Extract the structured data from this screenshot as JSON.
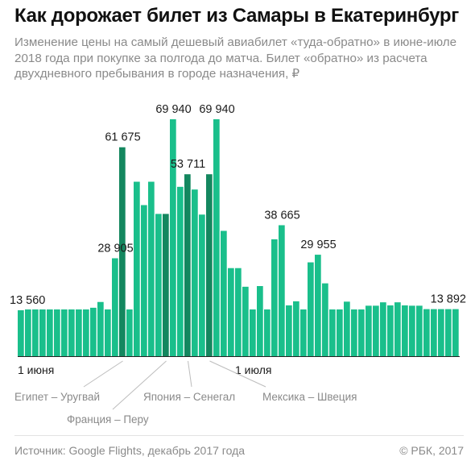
{
  "title": "Как дорожает билет из Самары в Екатеринбург",
  "subtitle": "Изменение цены на самый дешевый авиабилет «туда-обратно» в июне-июле 2018 года при покупке за полгода до матча. Билет «обратно» из расчета двухдневного пребывания в городе назначения, ₽",
  "footer": {
    "source": "Источник: Google Flights, декабрь 2017 года",
    "copyright": "© РБК, 2017"
  },
  "colors": {
    "bar": "#1abf8b",
    "match": "#14875f",
    "baseline": "#222222",
    "leader": "#bdbdbd",
    "match_label": "#8a8a8a"
  },
  "chart_data": {
    "type": "bar",
    "ylim": [
      0,
      75000
    ],
    "x_start": "1 июня",
    "x": [
      "1 июня",
      "2 июня",
      "3 июня",
      "4 июня",
      "5 июня",
      "6 июня",
      "7 июня",
      "8 июня",
      "9 июня",
      "10 июня",
      "11 июня",
      "12 июня",
      "13 июня",
      "14 июня",
      "15 июня",
      "16 июня",
      "17 июня",
      "18 июня",
      "19 июня",
      "20 июня",
      "21 июня",
      "22 июня",
      "23 июня",
      "24 июня",
      "25 июня",
      "26 июня",
      "27 июня",
      "28 июня",
      "29 июня",
      "30 июня",
      "1 июля",
      "2 июля",
      "3 июля",
      "4 июля",
      "5 июля",
      "6 июля",
      "7 июля",
      "8 июля",
      "9 июля",
      "10 июля",
      "11 июля",
      "12 июля",
      "13 июля",
      "14 июля",
      "15 июля",
      "16 июля",
      "17 июля",
      "18 июля",
      "19 июля",
      "20 июля",
      "21 июля",
      "22 июля",
      "23 июля",
      "24 июля",
      "25 июля",
      "26 июля",
      "27 июля",
      "28 июля",
      "29 июля",
      "30 июля",
      "31 июля"
    ],
    "values": [
      13560,
      13800,
      13800,
      13800,
      13800,
      13800,
      13800,
      13800,
      13800,
      13800,
      14300,
      16000,
      13800,
      28905,
      61675,
      13800,
      51500,
      44600,
      51500,
      42000,
      42000,
      69940,
      50000,
      53711,
      49200,
      41800,
      53711,
      69940,
      37000,
      26000,
      26000,
      20500,
      13800,
      20700,
      13800,
      34500,
      38665,
      15000,
      16200,
      13800,
      27700,
      29955,
      21500,
      13800,
      13800,
      16100,
      13800,
      13800,
      14900,
      14900,
      15900,
      15000,
      15900,
      15000,
      14900,
      14900,
      13892,
      13892,
      13892,
      13892,
      13892
    ],
    "match_days": [
      {
        "x": "15 июня",
        "match": "Египет – Уругвай"
      },
      {
        "x": "21 июня",
        "match": "Франция – Перу"
      },
      {
        "x": "24 июня",
        "match": "Япония – Сенегал"
      },
      {
        "x": "27 июня",
        "match": "Мексика – Швеция"
      }
    ],
    "data_labels": [
      {
        "x": "1 июня",
        "value": 13560,
        "text": "13 560"
      },
      {
        "x": "14 июня",
        "value": 28905,
        "text": "28 905"
      },
      {
        "x": "15 июня",
        "value": 61675,
        "text": "61 675"
      },
      {
        "x": "22 июня",
        "value": 69940,
        "text": "69 940"
      },
      {
        "x": "24 июня",
        "value": 53711,
        "text": "53 711"
      },
      {
        "x": "28 июня",
        "value": 69940,
        "text": "69 940"
      },
      {
        "x": "7 июля",
        "value": 38665,
        "text": "38 665"
      },
      {
        "x": "12 июля",
        "value": 29955,
        "text": "29 955"
      },
      {
        "x": "31 июля",
        "value": 13892,
        "text": "13 892"
      }
    ],
    "tick_labels": [
      {
        "x": "1 июня",
        "text": "1 июня"
      },
      {
        "x": "1 июля",
        "text": "1 июля"
      }
    ],
    "grid": false,
    "legend": false
  }
}
